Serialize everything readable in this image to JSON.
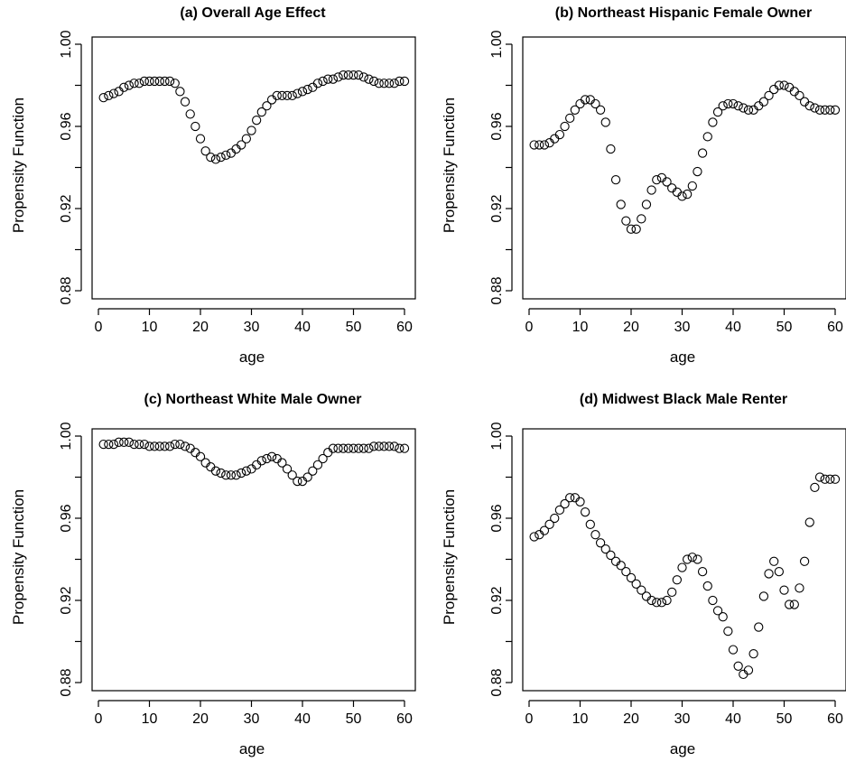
{
  "chart_data": [
    {
      "type": "scatter",
      "title": "(a) Overall Age Effect",
      "xlabel": "age",
      "ylabel": "Propensity Function",
      "xlim": [
        0,
        60
      ],
      "ylim": [
        0.88,
        1.0
      ],
      "xticks": [
        "0",
        "10",
        "20",
        "30",
        "40",
        "50",
        "60"
      ],
      "yticks": [
        "0.88",
        "0.92",
        "0.96",
        "1.00"
      ],
      "series": [
        {
          "x": [
            1,
            2,
            3,
            4,
            5,
            6,
            7,
            8,
            9,
            10,
            11,
            12,
            13,
            14,
            15,
            16,
            17,
            18,
            19,
            20,
            21,
            22,
            23,
            24,
            25,
            26,
            27,
            28,
            29,
            30,
            31,
            32,
            33,
            34,
            35,
            36,
            37,
            38,
            39,
            40,
            41,
            42,
            43,
            44,
            45,
            46,
            47,
            48,
            49,
            50,
            51,
            52,
            53,
            54,
            55,
            56,
            57,
            58,
            59,
            60
          ],
          "y": [
            0.974,
            0.975,
            0.976,
            0.977,
            0.979,
            0.98,
            0.981,
            0.981,
            0.982,
            0.982,
            0.982,
            0.982,
            0.982,
            0.982,
            0.981,
            0.977,
            0.972,
            0.966,
            0.96,
            0.954,
            0.948,
            0.945,
            0.944,
            0.945,
            0.946,
            0.947,
            0.949,
            0.951,
            0.954,
            0.958,
            0.963,
            0.967,
            0.97,
            0.973,
            0.975,
            0.975,
            0.975,
            0.975,
            0.976,
            0.977,
            0.978,
            0.979,
            0.981,
            0.982,
            0.983,
            0.983,
            0.984,
            0.985,
            0.985,
            0.985,
            0.985,
            0.984,
            0.983,
            0.982,
            0.981,
            0.981,
            0.981,
            0.981,
            0.982,
            0.982
          ]
        }
      ]
    },
    {
      "type": "scatter",
      "title": "(b) Northeast Hispanic Female Owner",
      "xlabel": "age",
      "ylabel": "Propensity Function",
      "xlim": [
        0,
        60
      ],
      "ylim": [
        0.88,
        1.0
      ],
      "xticks": [
        "0",
        "10",
        "20",
        "30",
        "40",
        "50",
        "60"
      ],
      "yticks": [
        "0.88",
        "0.92",
        "0.96",
        "1.00"
      ],
      "series": [
        {
          "x": [
            1,
            2,
            3,
            4,
            5,
            6,
            7,
            8,
            9,
            10,
            11,
            12,
            13,
            14,
            15,
            16,
            17,
            18,
            19,
            20,
            21,
            22,
            23,
            24,
            25,
            26,
            27,
            28,
            29,
            30,
            31,
            32,
            33,
            34,
            35,
            36,
            37,
            38,
            39,
            40,
            41,
            42,
            43,
            44,
            45,
            46,
            47,
            48,
            49,
            50,
            51,
            52,
            53,
            54,
            55,
            56,
            57,
            58,
            59,
            60
          ],
          "y": [
            0.951,
            0.951,
            0.951,
            0.952,
            0.954,
            0.956,
            0.96,
            0.964,
            0.968,
            0.971,
            0.973,
            0.973,
            0.971,
            0.968,
            0.962,
            0.949,
            0.934,
            0.922,
            0.914,
            0.91,
            0.91,
            0.915,
            0.922,
            0.929,
            0.934,
            0.935,
            0.933,
            0.93,
            0.928,
            0.926,
            0.927,
            0.931,
            0.938,
            0.947,
            0.955,
            0.962,
            0.967,
            0.97,
            0.971,
            0.971,
            0.97,
            0.969,
            0.968,
            0.968,
            0.97,
            0.972,
            0.975,
            0.978,
            0.98,
            0.98,
            0.979,
            0.977,
            0.975,
            0.972,
            0.97,
            0.969,
            0.968,
            0.968,
            0.968,
            0.968
          ]
        }
      ]
    },
    {
      "type": "scatter",
      "title": "(c) Northeast White Male Owner",
      "xlabel": "age",
      "ylabel": "Propensity Function",
      "xlim": [
        0,
        60
      ],
      "ylim": [
        0.88,
        1.0
      ],
      "xticks": [
        "0",
        "10",
        "20",
        "30",
        "40",
        "50",
        "60"
      ],
      "yticks": [
        "0.88",
        "0.92",
        "0.96",
        "1.00"
      ],
      "series": [
        {
          "x": [
            1,
            2,
            3,
            4,
            5,
            6,
            7,
            8,
            9,
            10,
            11,
            12,
            13,
            14,
            15,
            16,
            17,
            18,
            19,
            20,
            21,
            22,
            23,
            24,
            25,
            26,
            27,
            28,
            29,
            30,
            31,
            32,
            33,
            34,
            35,
            36,
            37,
            38,
            39,
            40,
            41,
            42,
            43,
            44,
            45,
            46,
            47,
            48,
            49,
            50,
            51,
            52,
            53,
            54,
            55,
            56,
            57,
            58,
            59,
            60
          ],
          "y": [
            0.996,
            0.996,
            0.996,
            0.997,
            0.997,
            0.997,
            0.996,
            0.996,
            0.996,
            0.995,
            0.995,
            0.995,
            0.995,
            0.995,
            0.996,
            0.996,
            0.995,
            0.994,
            0.992,
            0.99,
            0.987,
            0.985,
            0.983,
            0.982,
            0.981,
            0.981,
            0.981,
            0.982,
            0.983,
            0.984,
            0.986,
            0.988,
            0.989,
            0.99,
            0.989,
            0.987,
            0.984,
            0.981,
            0.978,
            0.978,
            0.98,
            0.983,
            0.986,
            0.989,
            0.992,
            0.994,
            0.994,
            0.994,
            0.994,
            0.994,
            0.994,
            0.994,
            0.994,
            0.995,
            0.995,
            0.995,
            0.995,
            0.995,
            0.994,
            0.994
          ]
        }
      ]
    },
    {
      "type": "scatter",
      "title": "(d) Midwest Black Male Renter",
      "xlabel": "age",
      "ylabel": "Propensity Function",
      "xlim": [
        0,
        60
      ],
      "ylim": [
        0.88,
        1.0
      ],
      "xticks": [
        "0",
        "10",
        "20",
        "30",
        "40",
        "50",
        "60"
      ],
      "yticks": [
        "0.88",
        "0.92",
        "0.96",
        "1.00"
      ],
      "series": [
        {
          "x": [
            1,
            2,
            3,
            4,
            5,
            6,
            7,
            8,
            9,
            10,
            11,
            12,
            13,
            14,
            15,
            16,
            17,
            18,
            19,
            20,
            21,
            22,
            23,
            24,
            25,
            26,
            27,
            28,
            29,
            30,
            31,
            32,
            33,
            34,
            35,
            36,
            37,
            38,
            39,
            40,
            41,
            42,
            43,
            44,
            45,
            46,
            47,
            48,
            49,
            50,
            51,
            52,
            53,
            54,
            55,
            56,
            57,
            58,
            59,
            60
          ],
          "y": [
            0.951,
            0.952,
            0.954,
            0.957,
            0.96,
            0.964,
            0.967,
            0.97,
            0.97,
            0.968,
            0.963,
            0.957,
            0.952,
            0.948,
            0.945,
            0.942,
            0.939,
            0.937,
            0.934,
            0.931,
            0.928,
            0.925,
            0.922,
            0.92,
            0.919,
            0.919,
            0.92,
            0.924,
            0.93,
            0.936,
            0.94,
            0.941,
            0.94,
            0.934,
            0.927,
            0.92,
            0.915,
            0.912,
            0.905,
            0.896,
            0.888,
            0.884,
            0.886,
            0.894,
            0.907,
            0.922,
            0.933,
            0.939,
            0.934,
            0.925,
            0.918,
            0.918,
            0.926,
            0.939,
            0.958,
            0.975,
            0.98,
            0.979,
            0.979,
            0.979
          ]
        }
      ]
    }
  ]
}
